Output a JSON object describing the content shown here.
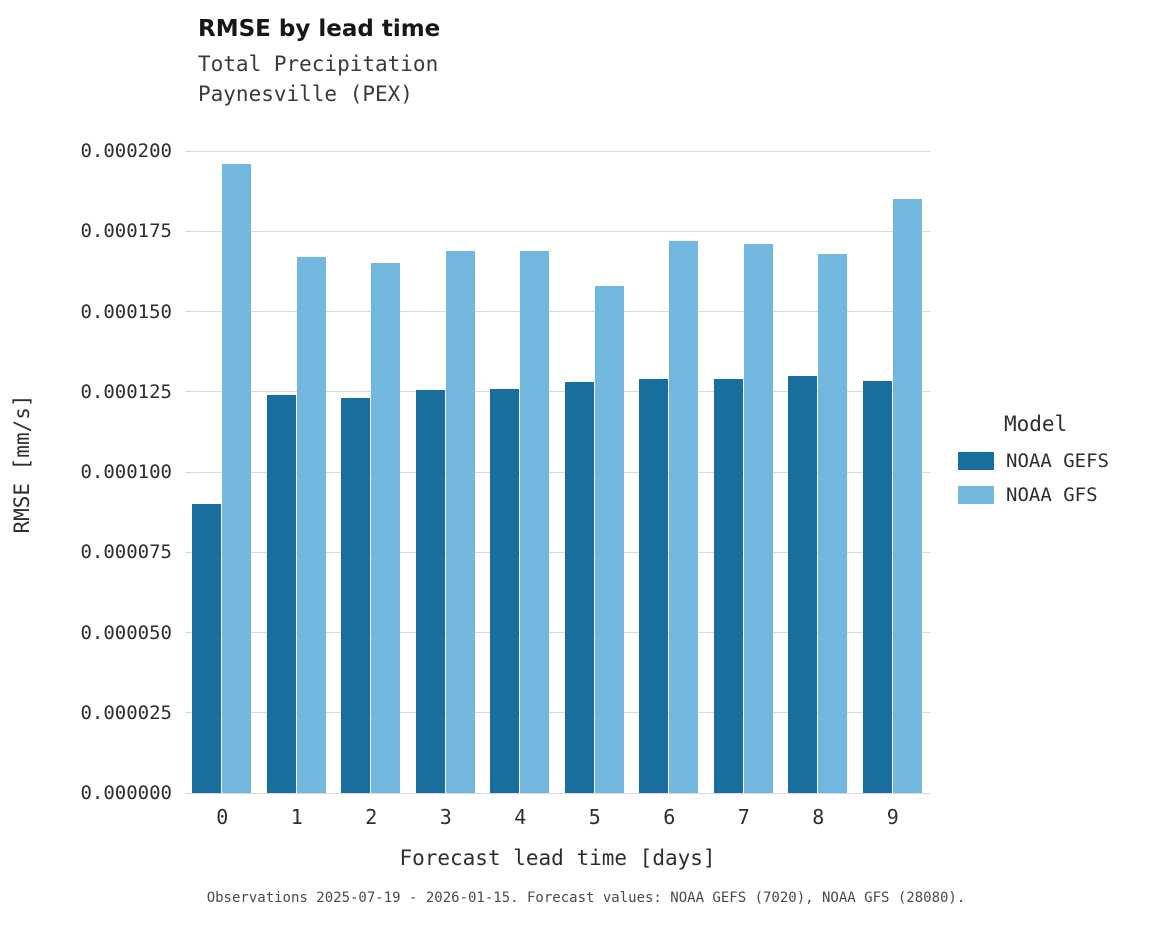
{
  "title": "RMSE by lead time",
  "subtitle_line1": "Total Precipitation",
  "subtitle_line2": "Paynesville (PEX)",
  "caption": "Observations 2025-07-19 - 2026-01-15. Forecast values: NOAA GEFS (7020), NOAA GFS (28080).",
  "legend": {
    "title": "Model",
    "entries": [
      {
        "label": "NOAA GEFS",
        "color": "#186f9e"
      },
      {
        "label": "NOAA GFS",
        "color": "#72b7dd"
      }
    ]
  },
  "chart_data": {
    "type": "bar",
    "title": "RMSE by lead time",
    "subtitle": "Total Precipitation, Paynesville (PEX)",
    "xlabel": "Forecast lead time [days]",
    "ylabel": "RMSE [mm/s]",
    "categories": [
      "0",
      "1",
      "2",
      "3",
      "4",
      "5",
      "6",
      "7",
      "8",
      "9"
    ],
    "series": [
      {
        "name": "NOAA GEFS",
        "color": "#186f9e",
        "values": [
          9e-05,
          0.000124,
          0.000123,
          0.0001255,
          0.000126,
          0.000128,
          0.000129,
          0.000129,
          0.00013,
          0.0001285
        ]
      },
      {
        "name": "NOAA GFS",
        "color": "#72b7dd",
        "values": [
          0.000196,
          0.000167,
          0.000165,
          0.000169,
          0.000169,
          0.000158,
          0.000172,
          0.000171,
          0.000168,
          0.000185
        ]
      }
    ],
    "ylim": [
      0,
      0.000205
    ],
    "yticks": [
      0.0,
      2.5e-05,
      5e-05,
      7.5e-05,
      0.0001,
      0.000125,
      0.00015,
      0.000175,
      0.0002
    ],
    "ytick_format_decimals": 6,
    "grid": true,
    "legend_position": "right",
    "legend_title": "Model"
  }
}
